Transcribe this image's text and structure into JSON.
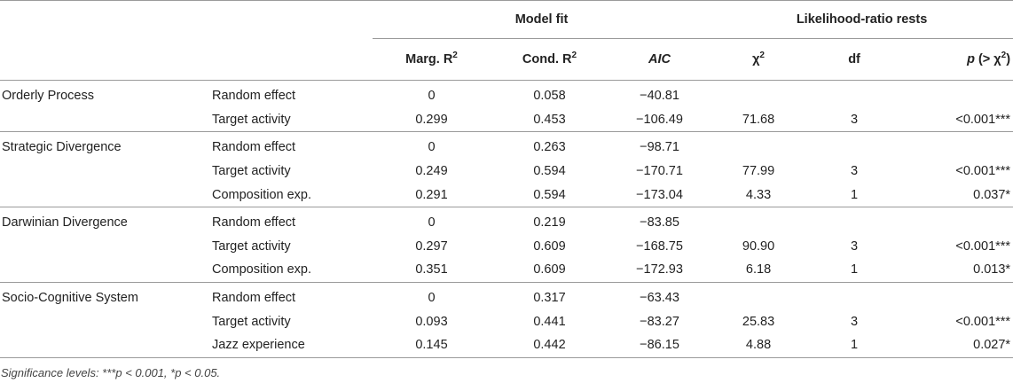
{
  "header": {
    "group_model_fit": "Model fit",
    "group_lr_tests": "Likelihood-ratio rests",
    "col_marg": "Marg. R",
    "col_cond": "Cond. R",
    "col_aic": "AIC",
    "col_chi": "χ",
    "col_df": "df",
    "col_p_letter": "p",
    "col_p_mid": " (> χ",
    "col_p_end": ")",
    "sup_two": "2"
  },
  "groups": [
    {
      "model": "Orderly Process",
      "rows": [
        {
          "term": "Random effect",
          "marg": "0",
          "cond": "0.058",
          "aic": "−40.81",
          "chi": "",
          "df": "",
          "p": ""
        },
        {
          "term": "Target activity",
          "marg": "0.299",
          "cond": "0.453",
          "aic": "−106.49",
          "chi": "71.68",
          "df": "3",
          "p": "<0.001***"
        }
      ]
    },
    {
      "model": "Strategic Divergence",
      "rows": [
        {
          "term": "Random effect",
          "marg": "0",
          "cond": "0.263",
          "aic": "−98.71",
          "chi": "",
          "df": "",
          "p": ""
        },
        {
          "term": "Target activity",
          "marg": "0.249",
          "cond": "0.594",
          "aic": "−170.71",
          "chi": "77.99",
          "df": "3",
          "p": "<0.001***"
        },
        {
          "term": "Composition exp.",
          "marg": "0.291",
          "cond": "0.594",
          "aic": "−173.04",
          "chi": "4.33",
          "df": "1",
          "p": "0.037*"
        }
      ]
    },
    {
      "model": "Darwinian Divergence",
      "rows": [
        {
          "term": "Random effect",
          "marg": "0",
          "cond": "0.219",
          "aic": "−83.85",
          "chi": "",
          "df": "",
          "p": ""
        },
        {
          "term": "Target activity",
          "marg": "0.297",
          "cond": "0.609",
          "aic": "−168.75",
          "chi": "90.90",
          "df": "3",
          "p": "<0.001***"
        },
        {
          "term": "Composition exp.",
          "marg": "0.351",
          "cond": "0.609",
          "aic": "−172.93",
          "chi": "6.18",
          "df": "1",
          "p": "0.013*"
        }
      ]
    },
    {
      "model": "Socio-Cognitive System",
      "rows": [
        {
          "term": "Random effect",
          "marg": "0",
          "cond": "0.317",
          "aic": "−63.43",
          "chi": "",
          "df": "",
          "p": ""
        },
        {
          "term": "Target activity",
          "marg": "0.093",
          "cond": "0.441",
          "aic": "−83.27",
          "chi": "25.83",
          "df": "3",
          "p": "<0.001***"
        },
        {
          "term": "Jazz experience",
          "marg": "0.145",
          "cond": "0.442",
          "aic": "−86.15",
          "chi": "4.88",
          "df": "1",
          "p": "0.027*"
        }
      ]
    }
  ],
  "note": "Significance levels: ***p < 0.001, *p < 0.05."
}
